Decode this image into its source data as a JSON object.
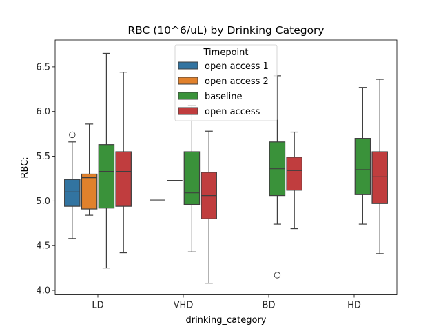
{
  "chart_data": {
    "type": "box",
    "title": "RBC (10^6/uL) by Drinking Category",
    "xlabel": "drinking_category",
    "ylabel": "RBC:",
    "categories": [
      "LD",
      "VHD",
      "BD",
      "HD"
    ],
    "ylim": [
      3.95,
      6.8
    ],
    "yticks": [
      4.0,
      4.5,
      5.0,
      5.5,
      6.0,
      6.5
    ],
    "ytick_labels": [
      "4.0",
      "4.5",
      "5.0",
      "5.5",
      "6.0",
      "6.5"
    ],
    "grid": false,
    "legend": {
      "title": "Timepoint",
      "placement": "top-center"
    },
    "series": [
      {
        "name": "open access 1",
        "color": "#3274a1",
        "boxes": [
          {
            "category": "LD",
            "whisker_low": 4.58,
            "q1": 4.94,
            "median": 5.1,
            "q3": 5.24,
            "whisker_high": 5.66,
            "outliers": [
              5.74
            ]
          }
        ]
      },
      {
        "name": "open access 2",
        "color": "#e1812c",
        "boxes": [
          {
            "category": "LD",
            "whisker_low": 4.84,
            "q1": 4.91,
            "median": 5.26,
            "q3": 5.3,
            "whisker_high": 5.86,
            "outliers": []
          }
        ]
      },
      {
        "name": "baseline",
        "color": "#3a923a",
        "boxes": [
          {
            "category": "LD",
            "whisker_low": 4.25,
            "q1": 4.92,
            "median": 5.33,
            "q3": 5.63,
            "whisker_high": 6.65,
            "outliers": []
          },
          {
            "category": "VHD",
            "whisker_low": 4.43,
            "q1": 4.96,
            "median": 5.09,
            "q3": 5.55,
            "whisker_high": 6.07,
            "outliers": []
          },
          {
            "category": "BD",
            "whisker_low": 4.74,
            "q1": 5.06,
            "median": 5.36,
            "q3": 5.66,
            "whisker_high": 6.4,
            "outliers": [
              4.17
            ]
          },
          {
            "category": "HD",
            "whisker_low": 4.74,
            "q1": 5.07,
            "median": 5.35,
            "q3": 5.7,
            "whisker_high": 6.27,
            "outliers": []
          }
        ]
      },
      {
        "name": "open access",
        "color": "#c03d3e",
        "boxes": [
          {
            "category": "LD",
            "whisker_low": 4.42,
            "q1": 4.94,
            "median": 5.33,
            "q3": 5.55,
            "whisker_high": 6.44,
            "outliers": []
          },
          {
            "category": "VHD",
            "whisker_low": 4.08,
            "q1": 4.8,
            "median": 5.06,
            "q3": 5.32,
            "whisker_high": 5.78,
            "outliers": []
          },
          {
            "category": "BD",
            "whisker_low": 4.69,
            "q1": 5.12,
            "median": 5.34,
            "q3": 5.49,
            "whisker_high": 5.77,
            "outliers": []
          },
          {
            "category": "HD",
            "whisker_low": 4.41,
            "q1": 4.97,
            "median": 5.27,
            "q3": 5.55,
            "whisker_high": 6.36,
            "outliers": []
          }
        ]
      }
    ],
    "extra_marks": [
      {
        "category": "VHD",
        "series_slot": "open access 1",
        "type": "collapsed-box",
        "value": 5.01
      },
      {
        "category": "VHD",
        "series_slot": "open access 2",
        "type": "collapsed-box",
        "value": 5.23
      }
    ]
  }
}
